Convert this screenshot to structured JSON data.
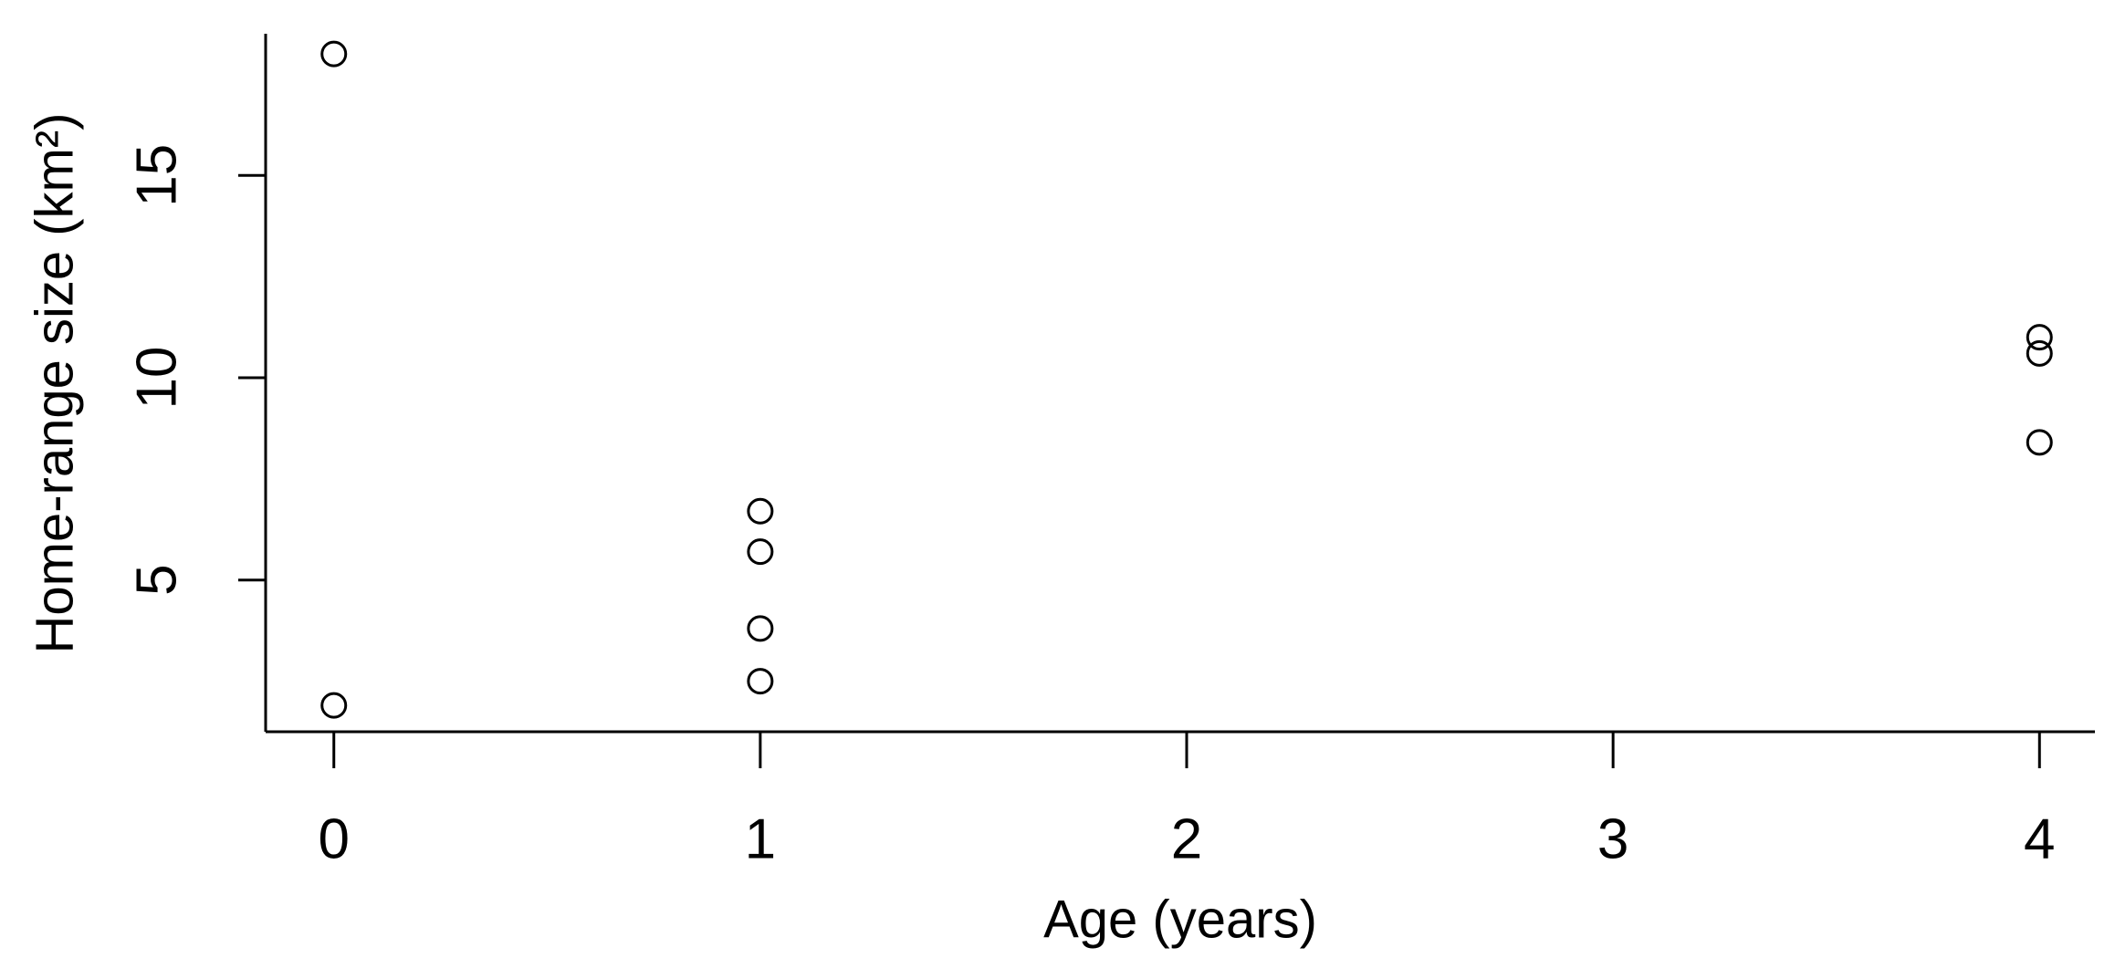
{
  "chart_data": {
    "type": "scatter",
    "x_label": "Age (years)",
    "y_label": "Home-range size (km²)",
    "series": [
      {
        "x": [
          0,
          0,
          1,
          1,
          1,
          1,
          4,
          4,
          4
        ],
        "values": [
          18.0,
          1.9,
          6.7,
          5.7,
          3.8,
          2.5,
          11.0,
          10.6,
          8.4
        ],
        "color": "#000000"
      }
    ],
    "xlim": [
      -0.16,
      4.13
    ],
    "ylim": [
      1.25,
      18.5
    ],
    "xticks": [
      0,
      1,
      2,
      3,
      4
    ],
    "yticks": [
      5,
      10,
      15
    ],
    "grid": false
  }
}
